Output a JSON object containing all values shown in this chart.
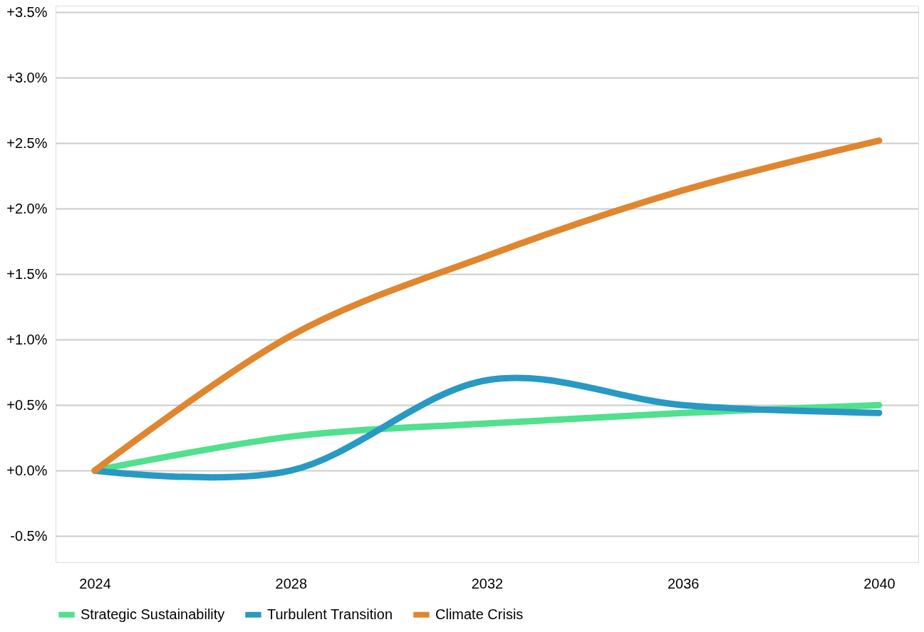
{
  "chart_data": {
    "type": "line",
    "categories": [
      "2024",
      "2028",
      "2032",
      "2036",
      "2040"
    ],
    "series": [
      {
        "name": "Strategic Sustainability",
        "color": "#50e08e",
        "values": [
          0,
          0.26,
          0.36,
          0.44,
          0.5
        ]
      },
      {
        "name": "Turbulent Transition",
        "color": "#2899c3",
        "values": [
          0,
          0,
          0.69,
          0.5,
          0.44
        ]
      },
      {
        "name": "Climate Crisis",
        "color": "#e0862f",
        "values": [
          0,
          1.03,
          1.64,
          2.14,
          2.52
        ]
      }
    ],
    "ylim": [
      -0.7,
      3.55
    ],
    "yticks": [
      {
        "value": -0.5,
        "label": "-0.5%"
      },
      {
        "value": 0,
        "label": "+0.0%"
      },
      {
        "value": 0.5,
        "label": "+0.5%"
      },
      {
        "value": 1,
        "label": "+1.0%"
      },
      {
        "value": 1.5,
        "label": "+1.5%"
      },
      {
        "value": 2,
        "label": "+2.0%"
      },
      {
        "value": 2.5,
        "label": "+2.5%"
      },
      {
        "value": 3,
        "label": "+3.0%"
      },
      {
        "value": 3.5,
        "label": "+3.5%"
      }
    ],
    "grid": "y",
    "legend": "bottom",
    "marker": "none",
    "line_style": "solid"
  }
}
